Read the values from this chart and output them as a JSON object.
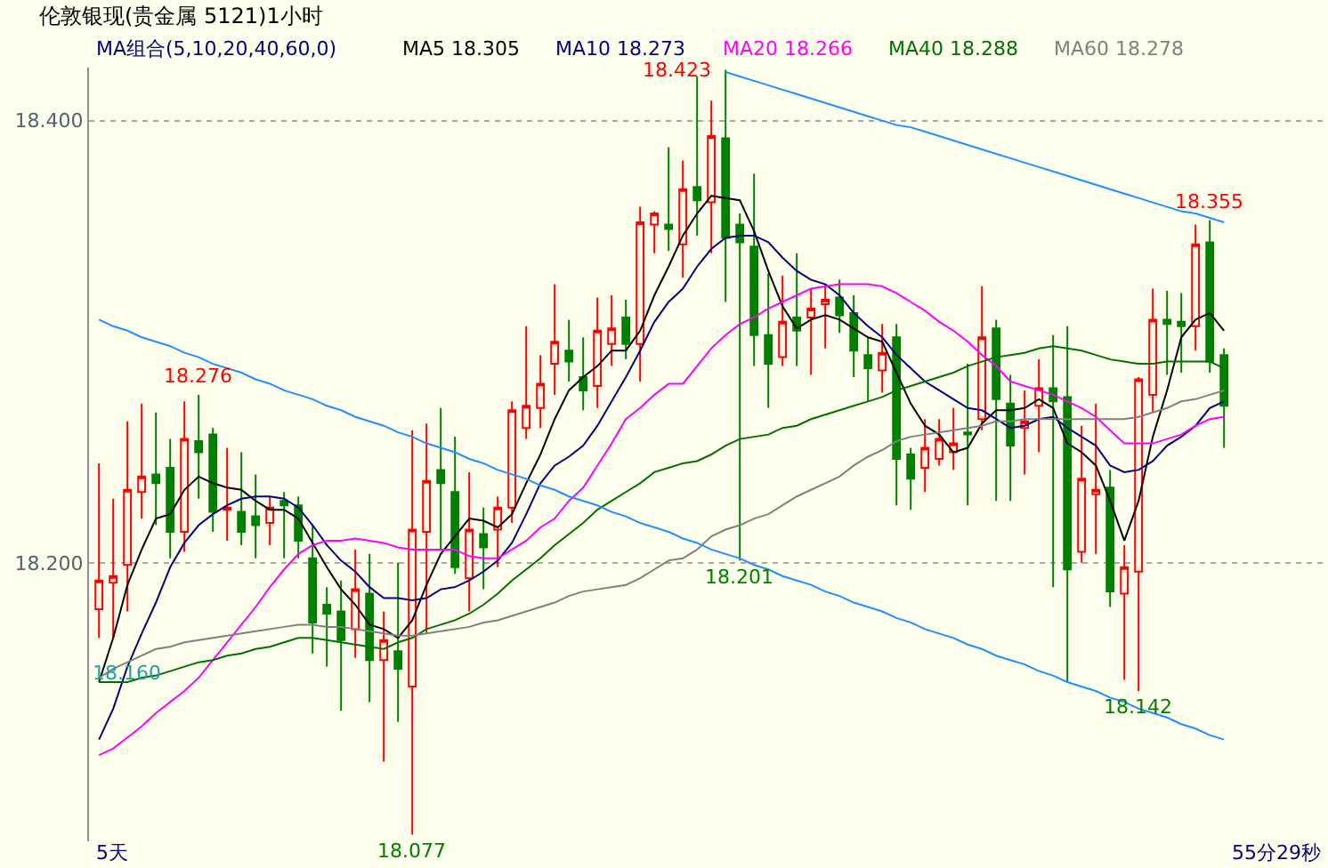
{
  "chart_data": {
    "type": "candlestick",
    "title": "伦敦银现(贵金属 5121)1小时",
    "legend_title": "MA组合(5,10,20,40,60,0)",
    "grid": "y",
    "tick_labels": "y",
    "ylim": [
      18.074,
      18.424
    ],
    "yticks": [
      {
        "value": 18.2,
        "label": "18.200"
      },
      {
        "value": 18.4,
        "label": "18.400"
      }
    ],
    "categories": [
      null,
      null,
      null,
      null,
      null,
      null,
      null,
      null,
      null,
      null,
      null,
      null,
      null,
      null,
      null,
      null,
      null,
      null,
      null,
      null,
      null,
      null,
      null,
      null,
      null,
      null,
      null,
      null,
      null,
      null,
      null,
      null,
      null,
      null,
      null,
      null,
      null,
      null,
      null,
      null,
      null,
      null,
      null,
      null,
      null,
      null,
      null,
      null,
      null,
      null,
      null,
      null,
      null,
      null,
      null,
      null,
      null,
      null,
      null,
      null,
      null,
      null,
      null,
      null,
      null,
      null,
      null,
      null,
      null,
      null,
      null,
      null,
      null,
      null,
      null,
      null,
      null,
      null,
      null,
      null
    ],
    "ohlc": [
      [
        18.179,
        18.245,
        18.166,
        18.192
      ],
      [
        18.191,
        18.229,
        18.166,
        18.194
      ],
      [
        18.199,
        18.264,
        18.178,
        18.233
      ],
      [
        18.232,
        18.272,
        18.22,
        18.239
      ],
      [
        18.24,
        18.268,
        18.217,
        18.236
      ],
      [
        18.243,
        18.256,
        18.202,
        18.214
      ],
      [
        18.214,
        18.273,
        18.205,
        18.256
      ],
      [
        18.255,
        18.276,
        18.229,
        18.25
      ],
      [
        18.258,
        18.261,
        18.214,
        18.223
      ],
      [
        18.224,
        18.252,
        18.21,
        18.225
      ],
      [
        18.223,
        18.25,
        18.208,
        18.214
      ],
      [
        18.221,
        18.24,
        18.202,
        18.217
      ],
      [
        18.218,
        18.23,
        18.208,
        18.225
      ],
      [
        18.228,
        18.232,
        18.202,
        18.226
      ],
      [
        18.226,
        18.23,
        18.202,
        18.21
      ],
      [
        18.202,
        18.217,
        18.159,
        18.173
      ],
      [
        18.181,
        18.189,
        18.153,
        18.177
      ],
      [
        18.178,
        18.192,
        18.133,
        18.165
      ],
      [
        18.17,
        18.206,
        18.157,
        18.188
      ],
      [
        18.186,
        18.204,
        18.137,
        18.156
      ],
      [
        18.156,
        18.178,
        18.11,
        18.165
      ],
      [
        18.16,
        18.2,
        18.128,
        18.152
      ],
      [
        18.144,
        18.26,
        18.077,
        18.215
      ],
      [
        18.214,
        18.263,
        18.168,
        18.237
      ],
      [
        18.242,
        18.27,
        18.206,
        18.236
      ],
      [
        18.232,
        18.257,
        18.195,
        18.198
      ],
      [
        18.193,
        18.241,
        18.178,
        18.215
      ],
      [
        18.213,
        18.225,
        18.188,
        18.207
      ],
      [
        18.215,
        18.23,
        18.198,
        18.225
      ],
      [
        18.225,
        18.273,
        18.218,
        18.269
      ],
      [
        18.261,
        18.307,
        18.256,
        18.271
      ],
      [
        18.27,
        18.294,
        18.261,
        18.281
      ],
      [
        18.29,
        18.326,
        18.276,
        18.3
      ],
      [
        18.296,
        18.31,
        18.282,
        18.291
      ],
      [
        18.284,
        18.302,
        18.269,
        18.278
      ],
      [
        18.28,
        18.32,
        18.27,
        18.305
      ],
      [
        18.299,
        18.321,
        18.289,
        18.306
      ],
      [
        18.311,
        18.319,
        18.292,
        18.299
      ],
      [
        18.299,
        18.361,
        18.282,
        18.354
      ],
      [
        18.353,
        18.359,
        18.34,
        18.358
      ],
      [
        18.353,
        18.388,
        18.341,
        18.351
      ],
      [
        18.344,
        18.382,
        18.329,
        18.369
      ],
      [
        18.37,
        18.42,
        18.348,
        18.364
      ],
      [
        18.363,
        18.409,
        18.34,
        18.393
      ],
      [
        18.392,
        18.423,
        18.318,
        18.347
      ],
      [
        18.353,
        18.358,
        18.201,
        18.345
      ],
      [
        18.343,
        18.376,
        18.289,
        18.303
      ],
      [
        18.303,
        18.331,
        18.27,
        18.29
      ],
      [
        18.293,
        18.33,
        18.289,
        18.309
      ],
      [
        18.311,
        18.34,
        18.289,
        18.305
      ],
      [
        18.311,
        18.324,
        18.285,
        18.315
      ],
      [
        18.317,
        18.326,
        18.297,
        18.319
      ],
      [
        18.32,
        18.328,
        18.304,
        18.312
      ],
      [
        18.313,
        18.321,
        18.284,
        18.296
      ],
      [
        18.294,
        18.302,
        18.273,
        18.288
      ],
      [
        18.287,
        18.308,
        18.277,
        18.295
      ],
      [
        18.302,
        18.308,
        18.226,
        18.247
      ],
      [
        18.249,
        18.252,
        18.224,
        18.238
      ],
      [
        18.243,
        18.265,
        18.232,
        18.252
      ],
      [
        18.247,
        18.265,
        18.244,
        18.256
      ],
      [
        18.25,
        18.27,
        18.242,
        18.254
      ],
      [
        18.259,
        18.29,
        18.226,
        18.258
      ],
      [
        18.265,
        18.325,
        18.26,
        18.302
      ],
      [
        18.306,
        18.31,
        18.228,
        18.274
      ],
      [
        18.272,
        18.285,
        18.228,
        18.253
      ],
      [
        18.261,
        18.278,
        18.24,
        18.264
      ],
      [
        18.271,
        18.292,
        18.25,
        18.279
      ],
      [
        18.279,
        18.303,
        18.189,
        18.273
      ],
      [
        18.275,
        18.307,
        18.146,
        18.197
      ],
      [
        18.205,
        18.262,
        18.2,
        18.238
      ],
      [
        18.231,
        18.272,
        18.204,
        18.233
      ],
      [
        18.234,
        18.242,
        18.18,
        18.187
      ],
      [
        18.186,
        18.208,
        18.147,
        18.198
      ],
      [
        18.196,
        18.284,
        18.142,
        18.283
      ],
      [
        18.276,
        18.324,
        18.268,
        18.31
      ],
      [
        18.31,
        18.323,
        18.285,
        18.308
      ],
      [
        18.309,
        18.322,
        18.286,
        18.307
      ],
      [
        18.307,
        18.353,
        18.296,
        18.344
      ],
      [
        18.345,
        18.355,
        18.286,
        18.291
      ],
      [
        18.294,
        18.297,
        18.252,
        18.271
      ]
    ],
    "colors": [
      "#ff0000",
      "#ff0000",
      "#ff0000",
      "#ff0000",
      "#008000",
      "#008000",
      "#ff0000",
      "#008000",
      "#008000",
      "#ff0000",
      "#008000",
      "#008000",
      "#ff0000",
      "#008000",
      "#008000",
      "#008000",
      "#008000",
      "#008000",
      "#ff0000",
      "#008000",
      "#ff0000",
      "#008000",
      "#ff0000",
      "#ff0000",
      "#008000",
      "#008000",
      "#ff0000",
      "#008000",
      "#ff0000",
      "#ff0000",
      "#ff0000",
      "#ff0000",
      "#ff0000",
      "#008000",
      "#008000",
      "#ff0000",
      "#ff0000",
      "#008000",
      "#ff0000",
      "#ff0000",
      "#008000",
      "#ff0000",
      "#008000",
      "#ff0000",
      "#008000",
      "#008000",
      "#008000",
      "#008000",
      "#ff0000",
      "#008000",
      "#ff0000",
      "#ff0000",
      "#008000",
      "#008000",
      "#008000",
      "#ff0000",
      "#008000",
      "#008000",
      "#ff0000",
      "#ff0000",
      "#ff0000",
      "#008000",
      "#ff0000",
      "#008000",
      "#008000",
      "#ff0000",
      "#ff0000",
      "#008000",
      "#008000",
      "#ff0000",
      "#ff0000",
      "#008000",
      "#ff0000",
      "#ff0000",
      "#ff0000",
      "#008000",
      "#008000",
      "#ff0000",
      "#008000",
      "#008000"
    ],
    "series": [
      {
        "type": "line",
        "name": "MA5 18.305",
        "color": "#000000",
        "values": [
          18.146,
          18.166,
          18.19,
          18.206,
          18.22,
          18.222,
          18.233,
          18.239,
          18.236,
          18.234,
          18.233,
          18.228,
          18.224,
          18.224,
          18.22,
          18.209,
          18.198,
          18.188,
          18.181,
          18.172,
          18.17,
          18.166,
          18.174,
          18.19,
          18.204,
          18.212,
          18.22,
          18.219,
          18.216,
          18.222,
          18.236,
          18.249,
          18.265,
          18.278,
          18.284,
          18.289,
          18.296,
          18.296,
          18.305,
          18.321,
          18.334,
          18.348,
          18.358,
          18.366,
          18.365,
          18.364,
          18.35,
          18.332,
          18.316,
          18.306,
          18.31,
          18.312,
          18.31,
          18.306,
          18.302,
          18.3,
          18.286,
          18.272,
          18.262,
          18.258,
          18.25,
          18.252,
          18.263,
          18.269,
          18.269,
          18.27,
          18.274,
          18.27,
          18.254,
          18.25,
          18.244,
          18.228,
          18.21,
          18.228,
          18.257,
          18.278,
          18.302,
          18.31,
          18.313,
          18.305
        ]
      },
      {
        "type": "line",
        "name": "MA10 18.273",
        "color": "#000080",
        "values": [
          18.12,
          18.134,
          18.153,
          18.168,
          18.182,
          18.198,
          18.209,
          18.217,
          18.222,
          18.226,
          18.229,
          18.23,
          18.23,
          18.229,
          18.225,
          18.217,
          18.208,
          18.201,
          18.196,
          18.189,
          18.184,
          18.184,
          18.183,
          18.184,
          18.188,
          18.189,
          18.192,
          18.196,
          18.201,
          18.209,
          18.222,
          18.236,
          18.244,
          18.248,
          18.253,
          18.262,
          18.273,
          18.284,
          18.296,
          18.309,
          18.318,
          18.324,
          18.334,
          18.342,
          18.347,
          18.348,
          18.348,
          18.345,
          18.338,
          18.332,
          18.328,
          18.326,
          18.321,
          18.313,
          18.307,
          18.302,
          18.294,
          18.288,
          18.282,
          18.278,
          18.274,
          18.27,
          18.269,
          18.265,
          18.261,
          18.262,
          18.265,
          18.266,
          18.261,
          18.257,
          18.253,
          18.244,
          18.241,
          18.242,
          18.246,
          18.253,
          18.257,
          18.262,
          18.27,
          18.273
        ]
      },
      {
        "type": "line",
        "name": "MA20 18.266",
        "color": "#ff00ff",
        "values": [
          18.113,
          18.116,
          18.121,
          18.126,
          18.132,
          18.137,
          18.142,
          18.148,
          18.156,
          18.164,
          18.172,
          18.18,
          18.189,
          18.197,
          18.204,
          18.208,
          18.21,
          18.21,
          18.211,
          18.21,
          18.209,
          18.207,
          18.206,
          18.206,
          18.206,
          18.206,
          18.203,
          18.202,
          18.202,
          18.206,
          18.21,
          18.216,
          18.22,
          18.228,
          18.234,
          18.244,
          18.254,
          18.265,
          18.27,
          18.276,
          18.281,
          18.281,
          18.289,
          18.297,
          18.303,
          18.308,
          18.311,
          18.315,
          18.318,
          18.321,
          18.324,
          18.325,
          18.326,
          18.326,
          18.326,
          18.325,
          18.322,
          18.318,
          18.314,
          18.309,
          18.305,
          18.3,
          18.294,
          18.289,
          18.282,
          18.28,
          18.278,
          18.276,
          18.273,
          18.27,
          18.266,
          18.26,
          18.254,
          18.254,
          18.254,
          18.256,
          18.258,
          18.262,
          18.265,
          18.266
        ]
      },
      {
        "type": "line",
        "name": "MA40 18.288",
        "color": "#007000",
        "values": [
          18.146,
          18.146,
          18.146,
          18.148,
          18.149,
          18.151,
          18.153,
          18.155,
          18.156,
          18.158,
          18.159,
          18.161,
          18.162,
          18.164,
          18.166,
          18.166,
          18.165,
          18.164,
          18.163,
          18.162,
          18.161,
          18.164,
          18.166,
          18.17,
          18.172,
          18.174,
          18.177,
          18.181,
          18.186,
          18.192,
          18.197,
          18.202,
          18.208,
          18.213,
          18.218,
          18.224,
          18.228,
          18.232,
          18.236,
          18.241,
          18.243,
          18.245,
          18.246,
          18.249,
          18.253,
          18.256,
          18.257,
          18.258,
          18.261,
          18.262,
          18.265,
          18.267,
          18.269,
          18.271,
          18.273,
          18.275,
          18.278,
          18.28,
          18.282,
          18.284,
          18.286,
          18.289,
          18.291,
          18.293,
          18.294,
          18.295,
          18.297,
          18.298,
          18.297,
          18.296,
          18.294,
          18.292,
          18.291,
          18.29,
          18.29,
          18.291,
          18.291,
          18.291,
          18.291,
          18.288
        ]
      },
      {
        "type": "line",
        "name": "MA60 18.278",
        "color": "#808080",
        "values": [
          18.148,
          18.152,
          18.155,
          18.158,
          18.161,
          18.162,
          18.164,
          18.165,
          18.166,
          18.167,
          18.168,
          18.169,
          18.17,
          18.171,
          18.172,
          18.172,
          18.171,
          18.171,
          18.17,
          18.169,
          18.168,
          18.167,
          18.167,
          18.168,
          18.169,
          18.17,
          18.171,
          18.173,
          18.174,
          18.176,
          18.178,
          18.18,
          18.182,
          18.185,
          18.187,
          18.188,
          18.189,
          18.19,
          18.193,
          18.197,
          18.201,
          18.202,
          18.206,
          18.212,
          18.215,
          18.217,
          18.22,
          18.222,
          18.226,
          18.23,
          18.233,
          18.236,
          18.239,
          18.244,
          18.248,
          18.251,
          18.255,
          18.257,
          18.258,
          18.259,
          18.26,
          18.261,
          18.262,
          18.264,
          18.264,
          18.265,
          18.265,
          18.265,
          18.265,
          18.265,
          18.265,
          18.265,
          18.265,
          18.266,
          18.268,
          18.27,
          18.273,
          18.274,
          18.276,
          18.278
        ]
      },
      {
        "type": "line",
        "color": "#1e90ff",
        "values": [
          18.31,
          18.307,
          18.305,
          18.302,
          18.3,
          18.298,
          18.295,
          18.293,
          18.29,
          18.288,
          18.286,
          18.283,
          18.281,
          18.278,
          18.276,
          18.274,
          18.271,
          18.269,
          18.266,
          18.264,
          18.262,
          18.259,
          18.257,
          18.254,
          18.252,
          18.25,
          18.247,
          18.245,
          18.242,
          18.24,
          18.238,
          18.235,
          18.233,
          18.23,
          18.228,
          18.226,
          18.223,
          18.221,
          18.218,
          18.216,
          18.214,
          18.211,
          18.209,
          18.206,
          18.204,
          18.202,
          18.199,
          18.197,
          18.194,
          18.192,
          18.19,
          18.187,
          18.185,
          18.182,
          18.18,
          18.178,
          18.175,
          18.173,
          18.17,
          18.168,
          18.166,
          18.163,
          18.161,
          18.158,
          18.156,
          18.154,
          18.151,
          18.149,
          18.146,
          18.144,
          18.142,
          18.139,
          18.137,
          18.134,
          18.132,
          18.13,
          18.127,
          18.125,
          18.122,
          18.12
        ]
      },
      {
        "type": "line",
        "color": "#1e90ff",
        "values": [
          null,
          null,
          null,
          null,
          null,
          null,
          null,
          null,
          null,
          null,
          null,
          null,
          null,
          null,
          null,
          null,
          null,
          null,
          null,
          null,
          null,
          null,
          null,
          null,
          null,
          null,
          null,
          null,
          null,
          null,
          null,
          null,
          null,
          null,
          null,
          null,
          null,
          null,
          null,
          null,
          null,
          null,
          null,
          null,
          18.422,
          18.42,
          18.418,
          18.416,
          18.414,
          18.412,
          18.41,
          18.408,
          18.406,
          18.404,
          18.402,
          18.4,
          18.398,
          18.397,
          18.395,
          18.393,
          18.391,
          18.389,
          18.387,
          18.385,
          18.383,
          18.381,
          18.379,
          18.377,
          18.375,
          18.373,
          18.371,
          18.369,
          18.367,
          18.365,
          18.363,
          18.361,
          18.359,
          18.358,
          18.356,
          18.354
        ]
      }
    ],
    "annotations": [
      "18.423",
      {
        "text": "18.276",
        "y": 18.276
      },
      {
        "text": "18.355",
        "y": 18.355
      },
      {
        "text": "18.201",
        "y": 18.201
      },
      {
        "text": "18.142",
        "y": 18.142
      },
      {
        "text": "18.077",
        "y": 18.077
      },
      {
        "text": "18.160",
        "y": 18.16
      },
      "5天",
      "55分29秒"
    ]
  }
}
